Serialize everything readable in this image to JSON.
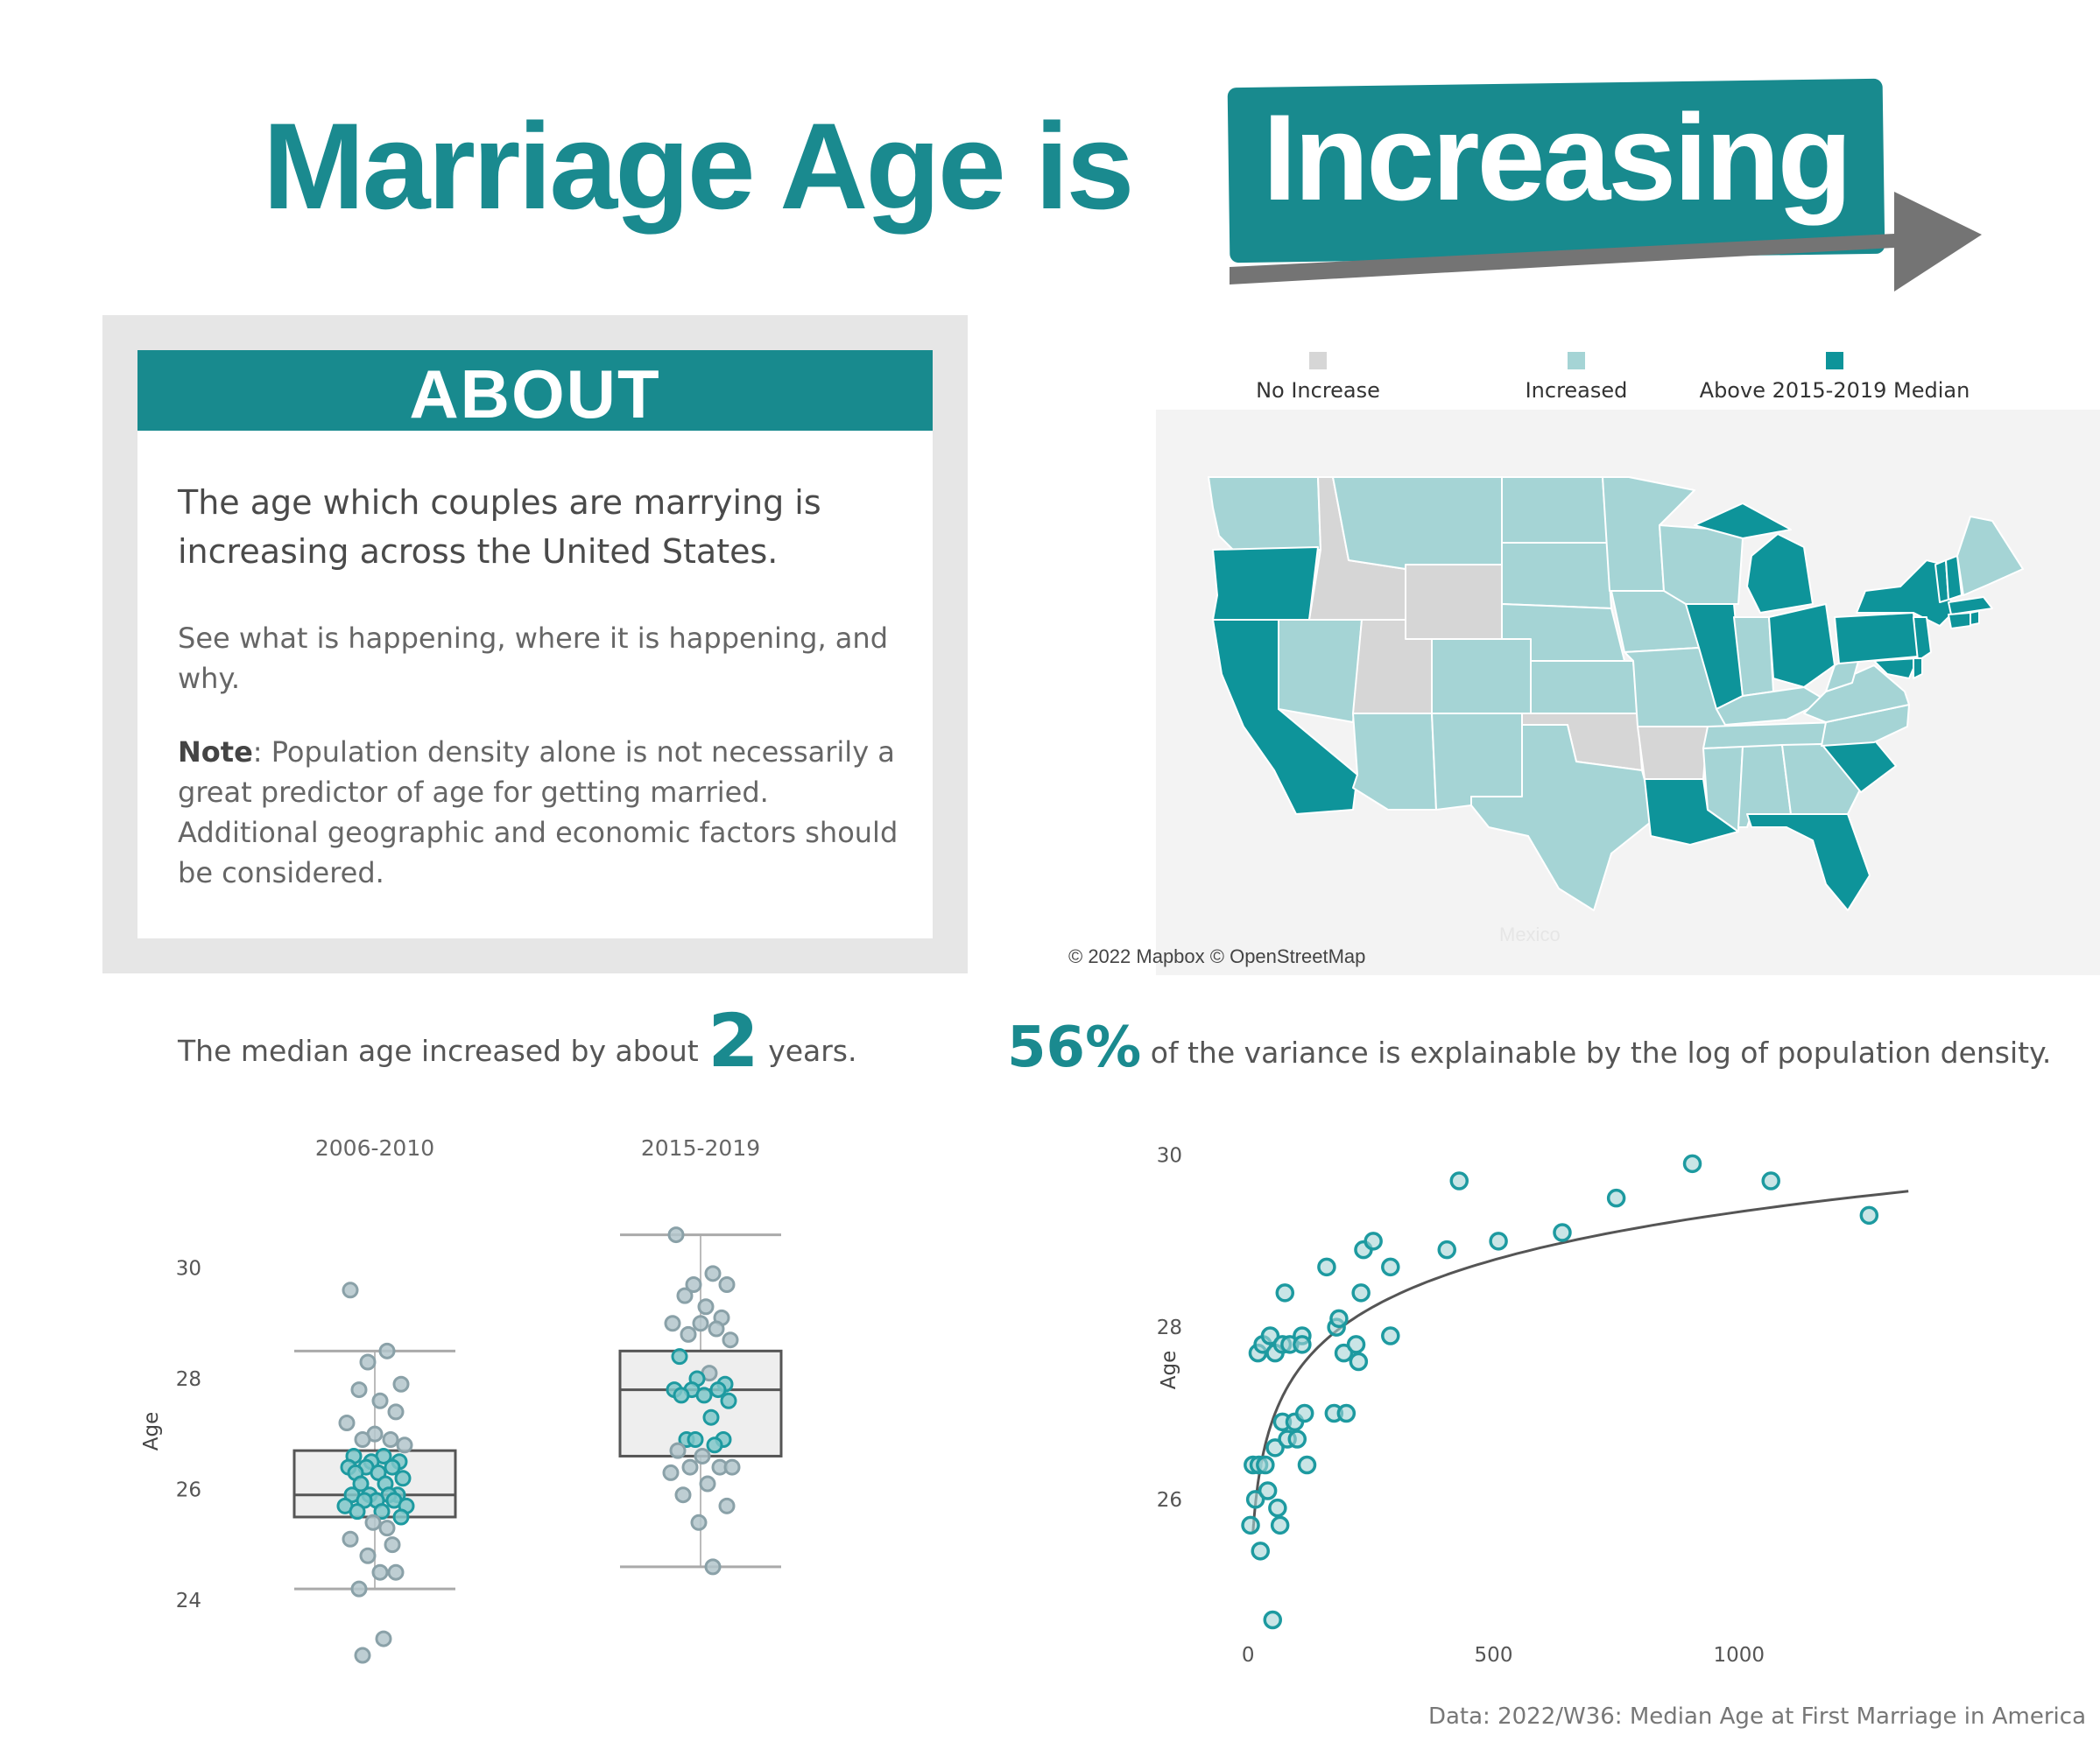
{
  "title": {
    "main": "Marriage Age is",
    "highlight": "Increasing"
  },
  "about": {
    "heading": "ABOUT",
    "lead": "The age which couples are marrying is increasing across the United States.",
    "sub": "See what is happening, where it is happening, and why.",
    "note_label": "Note",
    "note_text": ": Population density alone is not necessarily a great predictor of age for getting married. Additional geographic and economic factors should be considered."
  },
  "map": {
    "legend": [
      {
        "label": "No Increase",
        "color": "#d6d6d6"
      },
      {
        "label": "Increased",
        "color": "#a5d4d5"
      },
      {
        "label": "Above 2015-2019 Median",
        "color": "#0e949a"
      }
    ],
    "credit": "© 2022 Mapbox © OpenStreetMap",
    "place_label": "Mexico"
  },
  "stats": {
    "left_prefix": "The median age increased by about",
    "left_value": "2",
    "left_suffix": "years.",
    "right_value": "56%",
    "right_suffix": "of the variance is explainable by the log of population density."
  },
  "footer": "Data: 2022/W36: Median Age at First Marriage in America",
  "chart_data": [
    {
      "type": "box",
      "categories": [
        "2006-2010",
        "2015-2019"
      ],
      "ylabel": "Age",
      "yticks": [
        24,
        26,
        28,
        30
      ],
      "ylim": [
        22.7,
        31.4
      ],
      "boxes": [
        {
          "whisker_low": 24.2,
          "q1": 25.5,
          "median": 25.9,
          "q3": 26.7,
          "whisker_high": 28.5
        },
        {
          "whisker_low": 24.6,
          "q1": 26.6,
          "median": 27.8,
          "q3": 28.5,
          "whisker_high": 30.6
        }
      ],
      "points": [
        {
          "group": 0,
          "values": [
            29.6,
            28.5,
            28.3,
            27.9,
            27.8,
            27.6,
            27.4,
            27.2,
            27.0,
            26.9,
            26.9,
            26.8,
            26.6,
            26.6,
            26.5,
            26.5,
            26.4,
            26.4,
            26.4,
            26.3,
            26.3,
            26.2,
            26.1,
            26.1,
            25.9,
            25.9,
            25.9,
            25.9,
            25.8,
            25.8,
            25.8,
            25.7,
            25.7,
            25.6,
            25.6,
            25.5,
            25.4,
            25.3,
            25.1,
            25.0,
            24.8,
            24.5,
            24.5,
            24.2,
            23.3,
            23.0
          ],
          "highlight": [
            false,
            false,
            false,
            false,
            false,
            false,
            false,
            false,
            false,
            false,
            false,
            false,
            true,
            true,
            true,
            true,
            true,
            true,
            true,
            true,
            true,
            true,
            true,
            true,
            true,
            true,
            true,
            true,
            true,
            true,
            true,
            true,
            true,
            true,
            true,
            true,
            false,
            false,
            false,
            false,
            false,
            false,
            false,
            false,
            false,
            false
          ]
        },
        {
          "group": 1,
          "values": [
            30.6,
            29.9,
            29.7,
            29.7,
            29.5,
            29.3,
            29.1,
            29.0,
            29.0,
            28.9,
            28.8,
            28.7,
            28.4,
            28.1,
            28.0,
            27.9,
            27.8,
            27.8,
            27.8,
            27.7,
            27.7,
            27.6,
            27.3,
            26.9,
            26.9,
            26.9,
            26.8,
            26.7,
            26.6,
            26.4,
            26.4,
            26.4,
            26.3,
            26.1,
            25.9,
            25.7,
            25.4,
            24.6
          ],
          "highlight": [
            false,
            false,
            false,
            false,
            false,
            false,
            false,
            false,
            false,
            false,
            false,
            false,
            true,
            false,
            true,
            true,
            true,
            true,
            true,
            true,
            true,
            true,
            true,
            true,
            true,
            true,
            true,
            false,
            false,
            false,
            false,
            false,
            false,
            false,
            false,
            false,
            false,
            false
          ]
        }
      ]
    },
    {
      "type": "scatter",
      "xlabel": "",
      "ylabel": "Age",
      "xticks": [
        0,
        500,
        1000
      ],
      "yticks": [
        26,
        28,
        30
      ],
      "xlim": [
        -45,
        1400
      ],
      "ylim": [
        24.3,
        30.3
      ],
      "x": [
        5,
        10,
        15,
        20,
        22,
        25,
        30,
        35,
        40,
        45,
        50,
        55,
        55,
        60,
        65,
        70,
        70,
        75,
        80,
        85,
        95,
        100,
        110,
        110,
        115,
        120,
        160,
        175,
        180,
        185,
        195,
        200,
        220,
        225,
        230,
        235,
        255,
        290,
        290,
        405,
        430,
        510,
        640,
        750,
        905,
        1065,
        1265
      ],
      "y": [
        25.7,
        26.4,
        26.0,
        27.7,
        26.4,
        25.4,
        27.8,
        26.4,
        26.1,
        27.9,
        24.6,
        27.7,
        26.6,
        25.9,
        25.7,
        27.8,
        26.9,
        28.4,
        26.7,
        27.8,
        26.9,
        26.7,
        27.9,
        27.8,
        27.0,
        26.4,
        28.7,
        27.0,
        28.0,
        28.1,
        27.7,
        27.0,
        27.8,
        27.6,
        28.4,
        28.9,
        29.0,
        27.9,
        28.7,
        28.9,
        29.7,
        29.0,
        29.1,
        29.5,
        29.9,
        29.7,
        29.3
      ],
      "trendline": {
        "type": "logarithmic",
        "x_range": [
          10,
          1345
        ]
      }
    }
  ]
}
